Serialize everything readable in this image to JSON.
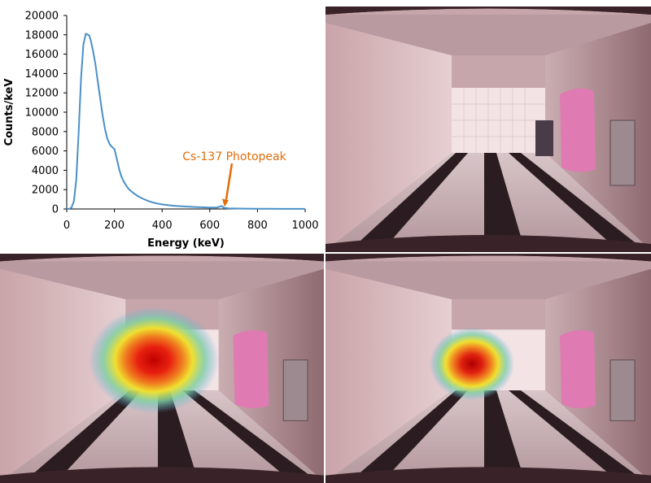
{
  "chart_data": {
    "type": "line",
    "xlabel": "Energy (keV)",
    "ylabel": "Counts/keV",
    "xlim": [
      0,
      1000
    ],
    "ylim": [
      0,
      20000
    ],
    "xticks": [
      0,
      200,
      400,
      600,
      800,
      1000
    ],
    "yticks": [
      0,
      2000,
      4000,
      6000,
      8000,
      10000,
      12000,
      14000,
      16000,
      18000,
      20000
    ],
    "grid": false,
    "series": [
      {
        "color": "#4a90c8",
        "x": [
          0,
          10,
          20,
          30,
          40,
          50,
          60,
          70,
          80,
          90,
          95,
          100,
          110,
          120,
          130,
          140,
          150,
          160,
          170,
          180,
          190,
          200,
          210,
          220,
          230,
          240,
          250,
          260,
          280,
          300,
          320,
          340,
          360,
          380,
          400,
          450,
          500,
          550,
          600,
          630,
          650,
          660,
          680,
          700,
          750,
          800,
          850,
          900,
          950,
          1000
        ],
        "y": [
          0,
          0,
          150,
          800,
          3000,
          8000,
          13500,
          17000,
          18100,
          18000,
          17900,
          17500,
          16400,
          15000,
          13200,
          11500,
          9800,
          8300,
          7300,
          6700,
          6400,
          6200,
          5200,
          4100,
          3300,
          2800,
          2400,
          2050,
          1650,
          1300,
          1050,
          850,
          680,
          560,
          470,
          330,
          250,
          190,
          140,
          150,
          300,
          120,
          70,
          50,
          30,
          20,
          15,
          10,
          8,
          5
        ]
      }
    ],
    "annotations": [
      {
        "text": "Cs-137 Photopeak",
        "x": 662,
        "y": 300,
        "color": "#e36c09"
      }
    ]
  }
}
